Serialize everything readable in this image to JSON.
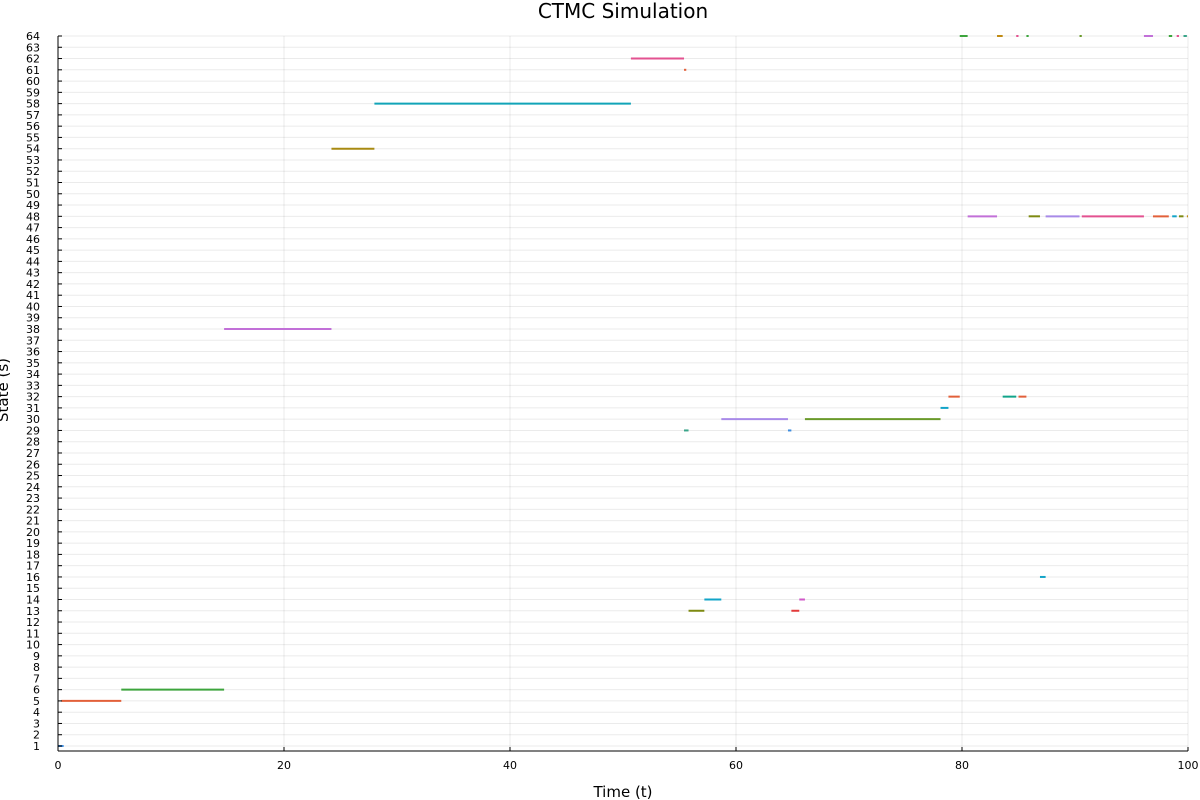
{
  "chart_data": {
    "type": "line",
    "title": "CTMC Simulation",
    "xlabel": "Time (t)",
    "ylabel": "State (s)",
    "xlim": [
      0,
      100
    ],
    "ylim": [
      1,
      64
    ],
    "x_ticks": [
      0,
      20,
      40,
      60,
      80,
      100
    ],
    "y_ticks": [
      1,
      2,
      3,
      4,
      5,
      6,
      7,
      8,
      9,
      10,
      11,
      12,
      13,
      14,
      15,
      16,
      17,
      18,
      19,
      20,
      21,
      22,
      23,
      24,
      25,
      26,
      27,
      28,
      29,
      30,
      31,
      32,
      33,
      34,
      35,
      36,
      37,
      38,
      39,
      40,
      41,
      42,
      43,
      44,
      45,
      46,
      47,
      48,
      49,
      50,
      51,
      52,
      53,
      54,
      55,
      56,
      57,
      58,
      59,
      60,
      61,
      62,
      63,
      64
    ],
    "grid": true,
    "legend": "none",
    "segments": [
      {
        "state": 1,
        "start": 0.0,
        "end": 0.5,
        "color": "#3D8DE0"
      },
      {
        "state": 5,
        "start": 0.3,
        "end": 5.6,
        "color": "#E2603A"
      },
      {
        "state": 6,
        "start": 5.6,
        "end": 14.7,
        "color": "#3DA53D"
      },
      {
        "state": 38,
        "start": 14.7,
        "end": 24.2,
        "color": "#C270D8"
      },
      {
        "state": 54,
        "start": 24.2,
        "end": 28.0,
        "color": "#A88A12"
      },
      {
        "state": 58,
        "start": 28.0,
        "end": 50.7,
        "color": "#12A4B8"
      },
      {
        "state": 62,
        "start": 50.7,
        "end": 55.4,
        "color": "#E35290"
      },
      {
        "state": 61,
        "start": 55.4,
        "end": 55.6,
        "color": "#E2603A"
      },
      {
        "state": 29,
        "start": 55.4,
        "end": 55.8,
        "color": "#3AA58A"
      },
      {
        "state": 13,
        "start": 55.8,
        "end": 57.2,
        "color": "#7E8A12"
      },
      {
        "state": 14,
        "start": 57.2,
        "end": 58.7,
        "color": "#12A4C8"
      },
      {
        "state": 30,
        "start": 58.7,
        "end": 64.6,
        "color": "#A88AE8"
      },
      {
        "state": 29,
        "start": 64.6,
        "end": 64.9,
        "color": "#3D8DE0"
      },
      {
        "state": 13,
        "start": 64.9,
        "end": 65.6,
        "color": "#E23A3A"
      },
      {
        "state": 14,
        "start": 65.6,
        "end": 66.1,
        "color": "#D058C8"
      },
      {
        "state": 30,
        "start": 66.1,
        "end": 78.1,
        "color": "#6A9A2A"
      },
      {
        "state": 31,
        "start": 78.1,
        "end": 78.8,
        "color": "#12A4C8"
      },
      {
        "state": 32,
        "start": 78.8,
        "end": 79.8,
        "color": "#E2603A"
      },
      {
        "state": 64,
        "start": 79.8,
        "end": 80.5,
        "color": "#3DA53D"
      },
      {
        "state": 48,
        "start": 80.5,
        "end": 83.1,
        "color": "#C270D8"
      },
      {
        "state": 64,
        "start": 83.1,
        "end": 83.6,
        "color": "#C08A12"
      },
      {
        "state": 32,
        "start": 83.6,
        "end": 84.8,
        "color": "#12A48A"
      },
      {
        "state": 64,
        "start": 84.8,
        "end": 85.0,
        "color": "#E35290"
      },
      {
        "state": 32,
        "start": 85.0,
        "end": 85.7,
        "color": "#E2603A"
      },
      {
        "state": 64,
        "start": 85.7,
        "end": 85.9,
        "color": "#3DA53D"
      },
      {
        "state": 48,
        "start": 85.9,
        "end": 86.9,
        "color": "#7E8A12"
      },
      {
        "state": 16,
        "start": 86.9,
        "end": 87.4,
        "color": "#12A4C8"
      },
      {
        "state": 48,
        "start": 87.4,
        "end": 90.4,
        "color": "#A88AE8"
      },
      {
        "state": 64,
        "start": 90.4,
        "end": 90.6,
        "color": "#6A9A2A"
      },
      {
        "state": 48,
        "start": 90.6,
        "end": 96.1,
        "color": "#E35290"
      },
      {
        "state": 64,
        "start": 96.1,
        "end": 96.9,
        "color": "#C270D8"
      },
      {
        "state": 48,
        "start": 96.9,
        "end": 98.3,
        "color": "#E2603A"
      },
      {
        "state": 64,
        "start": 98.3,
        "end": 98.6,
        "color": "#3DA53D"
      },
      {
        "state": 48,
        "start": 98.6,
        "end": 99.0,
        "color": "#12A4C8"
      },
      {
        "state": 64,
        "start": 99.0,
        "end": 99.2,
        "color": "#E35290"
      },
      {
        "state": 48,
        "start": 99.2,
        "end": 99.6,
        "color": "#7E8A12"
      },
      {
        "state": 64,
        "start": 99.6,
        "end": 99.9,
        "color": "#3AA58A"
      },
      {
        "state": 48,
        "start": 99.9,
        "end": 100.0,
        "color": "#C08A12"
      }
    ]
  }
}
